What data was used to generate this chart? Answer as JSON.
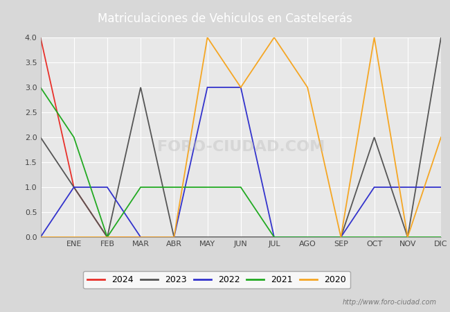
{
  "title": "Matriculaciones de Vehiculos en Castelserás",
  "title_bg_color": "#4d8fcc",
  "title_text_color": "#ffffff",
  "months": [
    "ENE",
    "FEB",
    "MAR",
    "ABR",
    "MAY",
    "JUN",
    "JUL",
    "AGO",
    "SEP",
    "OCT",
    "NOV",
    "DIC"
  ],
  "ylim": [
    0,
    4.0
  ],
  "yticks": [
    0.0,
    0.5,
    1.0,
    1.5,
    2.0,
    2.5,
    3.0,
    3.5,
    4.0
  ],
  "series": {
    "2024": {
      "color": "#e8302a",
      "data_x": [
        0,
        1,
        2,
        3
      ],
      "data_y": [
        4,
        1,
        0,
        0
      ]
    },
    "2023": {
      "color": "#555555",
      "data_x": [
        0,
        1,
        2,
        3,
        4,
        5,
        6,
        7,
        8,
        9,
        10,
        11,
        12
      ],
      "data_y": [
        2,
        1,
        0,
        3,
        0,
        0,
        0,
        0,
        0,
        0,
        2,
        0,
        4
      ]
    },
    "2022": {
      "color": "#3333cc",
      "data_x": [
        0,
        1,
        2,
        3,
        4,
        5,
        6,
        7,
        8,
        9,
        10,
        11,
        12
      ],
      "data_y": [
        0,
        1,
        1,
        0,
        0,
        3,
        3,
        0,
        0,
        0,
        1,
        1,
        1
      ]
    },
    "2021": {
      "color": "#22aa22",
      "data_x": [
        0,
        1,
        2,
        3,
        4,
        5,
        6,
        7,
        8,
        9,
        10,
        11,
        12
      ],
      "data_y": [
        3,
        2,
        0,
        1,
        1,
        1,
        1,
        0,
        0,
        0,
        0,
        0,
        0
      ]
    },
    "2020": {
      "color": "#f5a623",
      "data_x": [
        0,
        1,
        2,
        3,
        4,
        5,
        6,
        7,
        8,
        9,
        10,
        11,
        12
      ],
      "data_y": [
        0,
        0,
        0,
        0,
        0,
        4,
        3,
        4,
        3,
        0,
        4,
        0,
        2
      ]
    }
  },
  "legend_order": [
    "2024",
    "2023",
    "2022",
    "2021",
    "2020"
  ],
  "watermark": "http://www.foro-ciudad.com",
  "fig_bg_color": "#d8d8d8",
  "plot_bg_color": "#e8e8e8",
  "title_bar_color": "#4d8fcc",
  "grid_color": "#ffffff"
}
